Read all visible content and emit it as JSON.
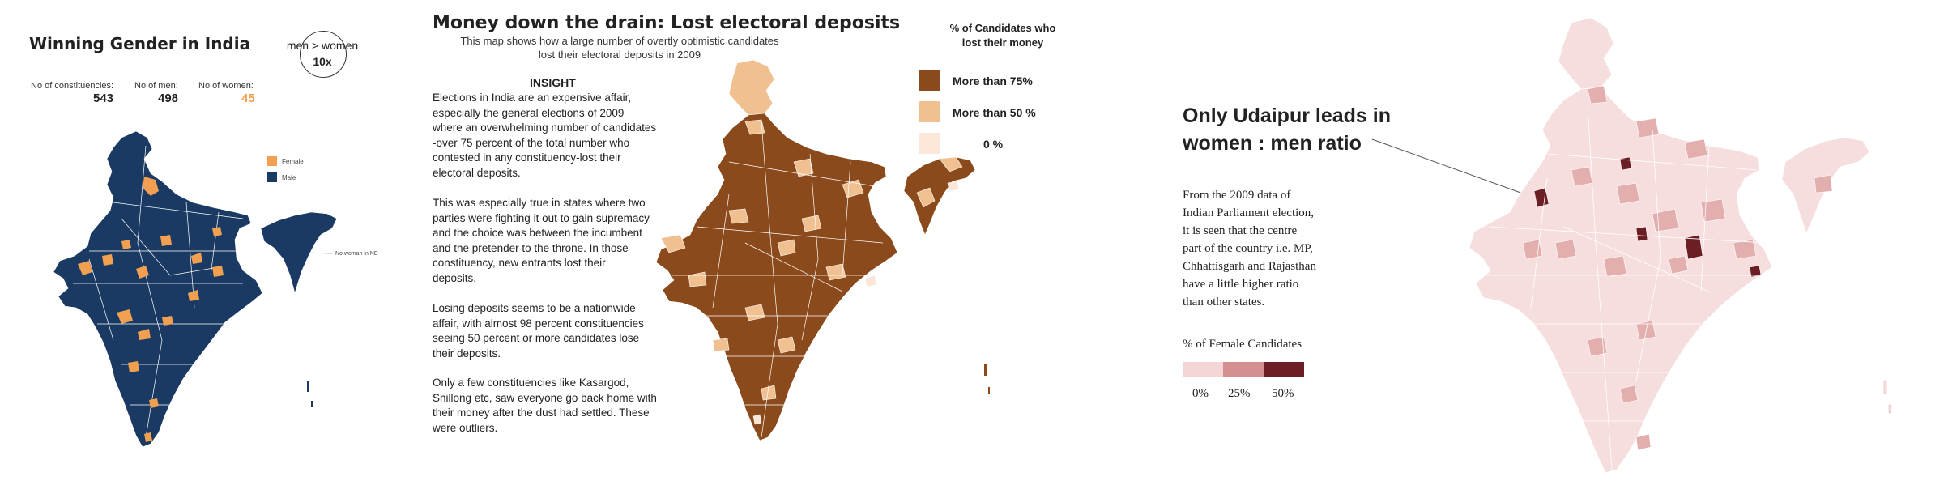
{
  "panel1": {
    "title": "Winning Gender in India",
    "badge": {
      "line1": "men > women",
      "line2": "10x"
    },
    "stats": [
      {
        "label": "No of constituencies:",
        "value": "543"
      },
      {
        "label": "No of men:",
        "value": "498"
      },
      {
        "label": "No of women:",
        "value": "45"
      }
    ],
    "legend": [
      {
        "label": "Female",
        "color": "#f0a050"
      },
      {
        "label": "Male",
        "color": "#1b3a63"
      }
    ],
    "annotation": "No woman in NE",
    "colors": {
      "male": "#1b3a63",
      "female": "#f0a050"
    }
  },
  "panel2": {
    "title": "Money down the drain: Lost electoral deposits",
    "subtitle_lines": [
      "This map shows how a large number of overtly optimistic candidates",
      "lost their electoral deposits in 2009"
    ],
    "insight_heading": "INSIGHT",
    "paragraphs": [
      [
        "Elections in India are an expensive affair,",
        "especially the general elections of 2009",
        "where an overwhelming number of candidates",
        "-over 75 percent of the total number who",
        "contested in any constituency-lost their",
        "electoral deposits."
      ],
      [
        "This was especially true in states where two",
        "parties were fighting it out to gain supremacy",
        "and the choice was between the incumbent",
        "and the pretender to the throne. In those",
        "constituency, new entrants lost their",
        "deposits."
      ],
      [
        "Losing deposits seems to be a nationwide",
        "affair, with almost 98 percent constituencies",
        "seeing 50 percent or more candidates lose",
        "their deposits."
      ],
      [
        "Only a few constituencies like Kasargod,",
        "Shillong etc, saw everyone go back home with",
        "their money after the dust had settled. These",
        "were outliers."
      ]
    ],
    "legend_title_lines": [
      "% of Candidates who",
      "lost their money"
    ],
    "legend": [
      {
        "label": "More than 75%",
        "color": "#8b4a1c"
      },
      {
        "label": "More than 50 %",
        "color": "#f0c090"
      },
      {
        "label": "0 %",
        "color": "#fbe6d8"
      }
    ]
  },
  "panel3": {
    "headline_lines": [
      "Only Udaipur leads in",
      "women : men ratio"
    ],
    "body_lines": [
      "From the 2009 data of",
      "Indian Parliament election,",
      "it is seen that the centre",
      "part of the country i.e. MP,",
      "Chhattisgarh and Rajasthan",
      "have a little higher ratio",
      "than other states."
    ],
    "legend_title": "% of Female Candidates",
    "legend": [
      {
        "label": "0%",
        "color": "#f5d6d6"
      },
      {
        "label": "25%",
        "color": "#d49090"
      },
      {
        "label": "50%",
        "color": "#6b1f24"
      }
    ],
    "colors": {
      "base": "#f6dede",
      "mid": "#e3aeae",
      "dark": "#6b1f24"
    }
  }
}
